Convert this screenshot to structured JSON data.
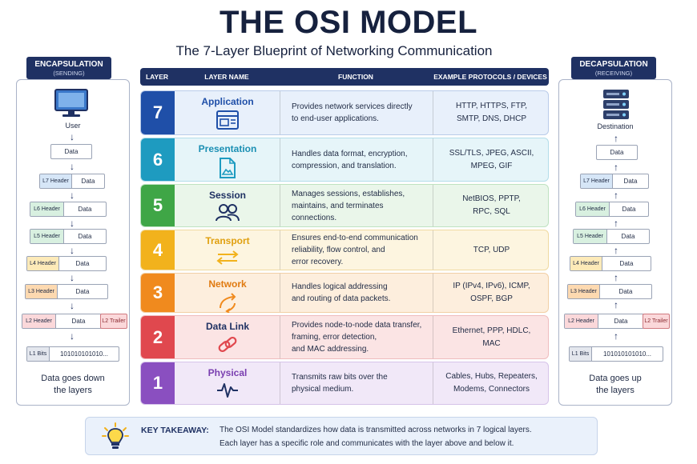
{
  "title": "THE OSI MODEL",
  "subtitle": "The 7-Layer Blueprint of Networking Communication",
  "encapsulation": {
    "heading": "ENCAPSULATION",
    "subheading": "(SENDING)",
    "start_label": "User",
    "data_label": "Data",
    "headers": [
      "L7 Header",
      "L6 Header",
      "L5 Header",
      "L4 Header",
      "L3 Header",
      "L2 Header"
    ],
    "payload": "Data",
    "trailer": "L2 Trailer",
    "bits_label": "L1 Bits",
    "bits_value": "101010101010...",
    "footer_line1": "Data goes down",
    "footer_line2": "the layers"
  },
  "decapsulation": {
    "heading": "DECAPSULATION",
    "subheading": "(RECEIVING)",
    "end_label": "Destination",
    "data_label": "Data",
    "headers": [
      "L7 Header",
      "L6 Header",
      "L5 Header",
      "L4 Header",
      "L3 Header",
      "L2 Header"
    ],
    "payload": "Data",
    "trailer": "L2 Trailer",
    "bits_label": "L1 Bits",
    "bits_value": "101010101010...",
    "footer_line1": "Data goes up",
    "footer_line2": "the layers"
  },
  "table": {
    "columns": [
      "LAYER",
      "LAYER NAME",
      "FUNCTION",
      "EXAMPLE PROTOCOLS / DEVICES"
    ],
    "layers": [
      {
        "num": "7",
        "name": "Application",
        "function": "Provides network services directly\nto end-user applications.",
        "protocols": "HTTP, HTTPS, FTP,\nSMTP, DNS, DHCP",
        "color": "#1f4fa8",
        "bg": "#e8f0fb",
        "border": "#b9cbe9",
        "text": "#1f4fa8",
        "icon": "browser-window-icon"
      },
      {
        "num": "6",
        "name": "Presentation",
        "function": "Handles data format, encryption,\ncompression, and translation.",
        "protocols": "SSL/TLS, JPEG, ASCII,\nMPEG, GIF",
        "color": "#1e9bc0",
        "bg": "#e6f5f9",
        "border": "#b3dde9",
        "text": "#1a8fb3",
        "icon": "image-file-icon"
      },
      {
        "num": "5",
        "name": "Session",
        "function": "Manages sessions, establishes,\nmaintains, and terminates\nconnections.",
        "protocols": "NetBIOS, PPTP,\nRPC, SQL",
        "color": "#3fa646",
        "bg": "#eaf6ea",
        "border": "#bfe2c1",
        "text": "#1f3163",
        "icon": "users-icon"
      },
      {
        "num": "4",
        "name": "Transport",
        "function": "Ensures end-to-end communication\nreliability, flow control, and\nerror recovery.",
        "protocols": "TCP, UDP",
        "color": "#f2b21c",
        "bg": "#fdf5e0",
        "border": "#efd9a0",
        "text": "#e0a010",
        "icon": "swap-arrows-icon"
      },
      {
        "num": "3",
        "name": "Network",
        "function": "Handles logical addressing\nand routing of data packets.",
        "protocols": "IP (IPv4, IPv6), ICMP,\nOSPF, BGP",
        "color": "#f08a1e",
        "bg": "#fdeedd",
        "border": "#f1cfa5",
        "text": "#e07a10",
        "icon": "routing-arrows-icon"
      },
      {
        "num": "2",
        "name": "Data Link",
        "function": "Provides node-to-node data transfer,\nframing, error detection,\nand MAC addressing.",
        "protocols": "Ethernet, PPP, HDLC,\nMAC",
        "color": "#e0484e",
        "bg": "#fbe4e4",
        "border": "#efbcbe",
        "text": "#1f3163",
        "icon": "chain-link-icon"
      },
      {
        "num": "1",
        "name": "Physical",
        "function": "Transmits raw bits over the\nphysical medium.",
        "protocols": "Cables, Hubs, Repeaters,\nModems, Connectors",
        "color": "#8a4fc0",
        "bg": "#f1e8f8",
        "border": "#d6c3e9",
        "text": "#7a3fb0",
        "icon": "signal-wave-icon"
      }
    ]
  },
  "takeaway": {
    "label": "KEY TAKEAWAY:",
    "line1": "The OSI Model standardizes how data is transmitted across networks in 7 logical layers.",
    "line2": "Each layer has a specific role and communicates with the layer above and below it."
  },
  "header_colors": [
    "#d6e6f7",
    "#d8f0e0",
    "#d8f0e0",
    "#fdeab8",
    "#fdd9b0",
    "#fbd8da"
  ]
}
